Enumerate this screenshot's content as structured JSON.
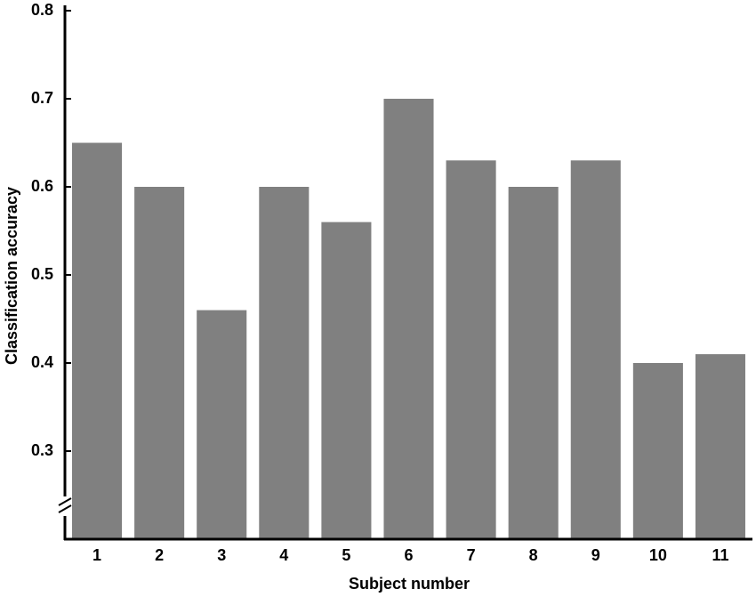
{
  "chart_data": {
    "type": "bar",
    "x_label": "Subject number",
    "y_label": "Classification accuracy",
    "categories": [
      "1",
      "2",
      "3",
      "4",
      "5",
      "6",
      "7",
      "8",
      "9",
      "10",
      "11"
    ],
    "values": [
      0.65,
      0.6,
      0.46,
      0.6,
      0.56,
      0.7,
      0.63,
      0.6,
      0.63,
      0.4,
      0.41
    ],
    "color": "#808080",
    "ylim": [
      0.2,
      0.8
    ],
    "yticks": [
      0.3,
      0.4,
      0.5,
      0.6,
      0.7,
      0.8
    ],
    "grid": false
  }
}
